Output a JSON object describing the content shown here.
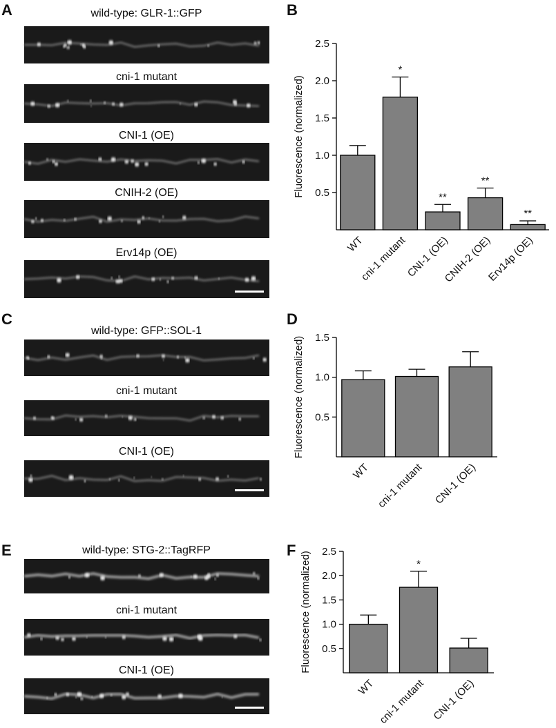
{
  "panels": [
    {
      "letter": "A",
      "captions": [
        "wild-type: GLR-1::GFP",
        "cni-1 mutant",
        "CNI-1 (OE)",
        "CNIH-2 (OE)",
        "Erv14p (OE)"
      ]
    },
    {
      "letter": "C",
      "captions": [
        "wild-type: GFP::SOL-1",
        "cni-1 mutant",
        "CNI-1 (OE)"
      ]
    },
    {
      "letter": "E",
      "captions": [
        "wild-type: STG-2::TagRFP",
        "cni-1 mutant",
        "CNI-1 (OE)"
      ]
    }
  ],
  "chart_data": [
    {
      "type": "bar",
      "panel_label": "B",
      "y_label": "Fluorescence (normalized)",
      "color": "#808080",
      "categories": [
        "WT",
        "cni-1 mutant",
        "CNI-1 (OE)",
        "CNIH-2 (OE)",
        "Erv14p (OE)"
      ],
      "values": [
        1.0,
        1.78,
        0.24,
        0.43,
        0.07
      ],
      "errors": [
        0.13,
        0.27,
        0.1,
        0.13,
        0.05
      ],
      "annotations": [
        null,
        "*",
        "**",
        "**",
        "**"
      ],
      "ylim": [
        0,
        2.5
      ],
      "yticks": [
        0.5,
        {
          "value": 1,
          "label": "1.0"
        },
        1.5,
        {
          "value": 2,
          "label": "2.0"
        },
        2.5
      ]
    },
    {
      "type": "bar",
      "panel_label": "D",
      "y_label": "Fluorescence (normalized)",
      "color": "#808080",
      "categories": [
        "WT",
        "cni-1 mutant",
        "CNI-1 (OE)"
      ],
      "values": [
        0.97,
        1.01,
        1.13
      ],
      "errors": [
        0.11,
        0.09,
        0.19
      ],
      "ylim": [
        0,
        1.5
      ],
      "yticks": [
        0.5,
        {
          "value": 1,
          "label": "1.0"
        },
        1.5
      ]
    },
    {
      "type": "bar",
      "panel_label": "F",
      "y_label": "Fluorescence (normalized)",
      "color": "#808080",
      "categories": [
        "WT",
        "cni-1 mutant",
        "CNI-1 (OE)"
      ],
      "values": [
        1.0,
        1.76,
        0.51
      ],
      "errors": [
        0.19,
        0.33,
        0.2
      ],
      "annotations": [
        null,
        "*",
        null
      ],
      "ylim": [
        0,
        2.5
      ],
      "yticks": [
        0.5,
        {
          "value": 1,
          "label": "1.0"
        },
        1.5,
        {
          "value": 2,
          "label": "2.0"
        },
        2.5
      ]
    }
  ]
}
